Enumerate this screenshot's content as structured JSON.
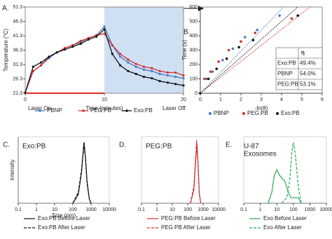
{
  "chart_data": [
    {
      "type": "line",
      "panel": "A.",
      "ylabel": "Temperature (°C)",
      "xlabel": "Time (minutes)",
      "annotations": [
        "Laser On",
        "Laser Off"
      ],
      "shaded_x": [
        10,
        20
      ],
      "laser_on_x": [
        0,
        10
      ],
      "laser_color": "#e03020",
      "shade_color": "#cfe0f3",
      "x": [
        0,
        1,
        2,
        3,
        4,
        5,
        6,
        7,
        8,
        9,
        10,
        11,
        12,
        13,
        14,
        15,
        16,
        17,
        18,
        19,
        20
      ],
      "xlim": [
        0,
        20
      ],
      "xticks": [
        0,
        10,
        20
      ],
      "ylim": [
        21.3,
        51.3
      ],
      "yticks": [
        21.3,
        26.3,
        31.3,
        36.3,
        41.3,
        46.3,
        51.3
      ],
      "series": [
        {
          "name": "PBNP",
          "color": "#4a78c0",
          "values": [
            21.5,
            29,
            31,
            33.5,
            35.5,
            37,
            38,
            39,
            40.5,
            41.5,
            44.5,
            38,
            34,
            32,
            30.5,
            29.5,
            29,
            28,
            27.5,
            27,
            26.5
          ]
        },
        {
          "name": "PEG:PB",
          "color": "#d03030",
          "values": [
            21.5,
            29,
            31,
            34,
            35.5,
            37,
            38,
            39.5,
            40.5,
            41.5,
            42,
            38,
            35,
            33,
            31.5,
            30.5,
            30,
            29,
            28.5,
            28.5,
            27.5
          ]
        },
        {
          "name": "Exo:PB",
          "color": "#111111",
          "values": [
            21.5,
            30.5,
            32,
            34,
            35.5,
            36.5,
            37.5,
            38.5,
            40,
            41,
            43.5,
            35,
            31,
            29,
            28,
            27,
            26.5,
            25.5,
            25,
            24.5,
            24
          ]
        }
      ]
    },
    {
      "type": "scatter",
      "panel": "B.",
      "ylabel": "Time (s)",
      "xlabel": "-ln(θ)",
      "xlim": [
        0,
        6
      ],
      "xticks": [
        0,
        1,
        2,
        3,
        4,
        5,
        6
      ],
      "ylim": [
        0,
        600
      ],
      "yticks": [
        0,
        100,
        200,
        300,
        400,
        500,
        600
      ],
      "series": [
        {
          "name": "PBNP",
          "color": "#4a78c0",
          "x": [
            0.3,
            0.6,
            1.1,
            1.6,
            2.2,
            2.8,
            3.9
          ],
          "values": [
            100,
            150,
            230,
            310,
            390,
            440,
            540
          ],
          "fit_x": [
            0,
            4.1
          ],
          "fit_y": [
            0,
            600
          ]
        },
        {
          "name": "PEG:PB",
          "color": "#d03030",
          "x": [
            0.2,
            0.5,
            0.9,
            1.4,
            2.0,
            2.7,
            4.5
          ],
          "values": [
            100,
            150,
            220,
            300,
            360,
            420,
            520
          ],
          "fit_x": [
            0,
            5.4
          ],
          "fit_y": [
            0,
            600
          ]
        },
        {
          "name": "Exo:PB",
          "color": "#111111",
          "x": [
            0,
            0.4,
            0.8,
            1.3,
            1.9,
            2.6,
            4.8
          ],
          "values": [
            0,
            100,
            170,
            240,
            320,
            370,
            540
          ],
          "fit_x": [
            0,
            4.8
          ],
          "fit_y": [
            0,
            600
          ]
        }
      ],
      "table": {
        "header": "η",
        "rows": [
          [
            "Exo:PB",
            "49.4%"
          ],
          [
            "PBNP",
            "54.0%"
          ],
          [
            "PEG:PB",
            "53.1%"
          ]
        ]
      }
    },
    {
      "type": "line",
      "panel": "C.",
      "annotations": [
        "Exo:PB"
      ],
      "xlabel": "Size (nm)",
      "ylabel": "Intensity",
      "log_x": true,
      "xlim": [
        0.1,
        10000
      ],
      "xticks": [
        0.1,
        1,
        10,
        100,
        1000,
        10000
      ],
      "ylim": [
        0,
        15
      ],
      "series": [
        {
          "name": "Exo:PB Before Laser",
          "color": "#111111",
          "dash": false,
          "x": [
            100,
            200,
            300,
            400,
            500,
            600,
            800,
            1000
          ],
          "values": [
            0,
            2,
            7,
            13.5,
            10,
            5,
            1,
            0
          ]
        },
        {
          "name": "Exo:PB After Laser",
          "color": "#111111",
          "dash": true,
          "x": [
            100,
            200,
            300,
            420,
            500,
            600,
            800,
            1000
          ],
          "values": [
            0,
            2.5,
            7.5,
            13.8,
            10,
            4.5,
            1,
            0
          ]
        }
      ]
    },
    {
      "type": "line",
      "panel": "D.",
      "annotations": [
        "PEG:PB"
      ],
      "log_x": true,
      "xlim": [
        0.1,
        10000
      ],
      "xticks": [
        0.1,
        1,
        10,
        100,
        1000,
        10000
      ],
      "ylim": [
        0,
        20
      ],
      "series": [
        {
          "name": "PEG:PB Before Laser",
          "color": "#d03030",
          "dash": false,
          "x": [
            150,
            250,
            320,
            400,
            480,
            560,
            700
          ],
          "values": [
            0,
            4,
            12,
            18,
            11,
            3,
            0
          ]
        },
        {
          "name": "PEG:PB After Laser",
          "color": "#d03030",
          "dash": true,
          "x": [
            150,
            250,
            320,
            380,
            460,
            560,
            700
          ],
          "values": [
            0,
            5,
            13,
            19,
            12,
            3,
            0
          ]
        }
      ]
    },
    {
      "type": "line",
      "panel": "E.",
      "annotations": [
        "U-87",
        "Exosomes"
      ],
      "log_x": true,
      "xlim": [
        0.1,
        10000
      ],
      "xticks": [
        0.1,
        1,
        10,
        100,
        1000,
        10000
      ],
      "ylim": [
        0,
        12
      ],
      "series": [
        {
          "name": "Exo Before Laser",
          "color": "#2aa84a",
          "dash": false,
          "x": [
            3,
            5,
            7,
            10,
            15,
            20,
            30,
            50,
            70,
            100,
            200,
            300
          ],
          "values": [
            0,
            2,
            5,
            6,
            5,
            4.5,
            4,
            2,
            1,
            1,
            1,
            0
          ]
        },
        {
          "name": "Exo After Laser",
          "color": "#2aa84a",
          "dash": true,
          "x": [
            20,
            40,
            60,
            80,
            100,
            130,
            200,
            300
          ],
          "values": [
            0,
            1,
            4,
            9,
            11,
            9,
            3,
            0
          ]
        }
      ]
    }
  ]
}
